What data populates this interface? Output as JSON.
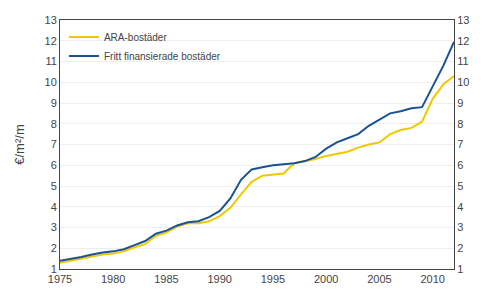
{
  "chart_data": {
    "type": "line",
    "ylabel": "€/m²/m",
    "x": [
      1975,
      1976,
      1977,
      1978,
      1979,
      1980,
      1981,
      1982,
      1983,
      1984,
      1985,
      1986,
      1987,
      1988,
      1989,
      1990,
      1991,
      1992,
      1993,
      1994,
      1995,
      1996,
      1997,
      1998,
      1999,
      2000,
      2001,
      2002,
      2003,
      2004,
      2005,
      2006,
      2007,
      2008,
      2009,
      2010,
      2011,
      2012
    ],
    "series": [
      {
        "name": "ARA-bostäder",
        "color": "#f0c800",
        "values": [
          1.3,
          1.4,
          1.5,
          1.6,
          1.7,
          1.75,
          1.85,
          2.05,
          2.2,
          2.6,
          2.75,
          3.05,
          3.2,
          3.2,
          3.3,
          3.55,
          3.95,
          4.6,
          5.2,
          5.5,
          5.55,
          5.6,
          6.1,
          6.2,
          6.3,
          6.45,
          6.55,
          6.65,
          6.85,
          7.0,
          7.1,
          7.5,
          7.7,
          7.8,
          8.1,
          9.2,
          9.9,
          10.3
        ]
      },
      {
        "name": "Fritt finansierade bostäder",
        "color": "#1a5294",
        "values": [
          1.4,
          1.48,
          1.58,
          1.7,
          1.8,
          1.85,
          1.95,
          2.15,
          2.35,
          2.7,
          2.85,
          3.1,
          3.25,
          3.3,
          3.5,
          3.8,
          4.4,
          5.3,
          5.8,
          5.9,
          6.0,
          6.05,
          6.1,
          6.2,
          6.4,
          6.8,
          7.1,
          7.3,
          7.5,
          7.9,
          8.2,
          8.5,
          8.6,
          8.75,
          8.8,
          9.8,
          10.8,
          11.95
        ]
      }
    ],
    "xlim": [
      1975,
      2012
    ],
    "xticks": [
      1975,
      1980,
      1985,
      1990,
      1995,
      2000,
      2005,
      2010
    ],
    "ylim": [
      1,
      13
    ],
    "yticks": [
      1,
      2,
      3,
      4,
      5,
      6,
      7,
      8,
      9,
      10,
      11,
      12,
      13
    ],
    "y2lim": [
      1,
      13
    ],
    "y2ticks": [
      1,
      2,
      3,
      4,
      5,
      6,
      7,
      8,
      9,
      10,
      11,
      12,
      13
    ],
    "grid": true,
    "legend": "upper left"
  }
}
